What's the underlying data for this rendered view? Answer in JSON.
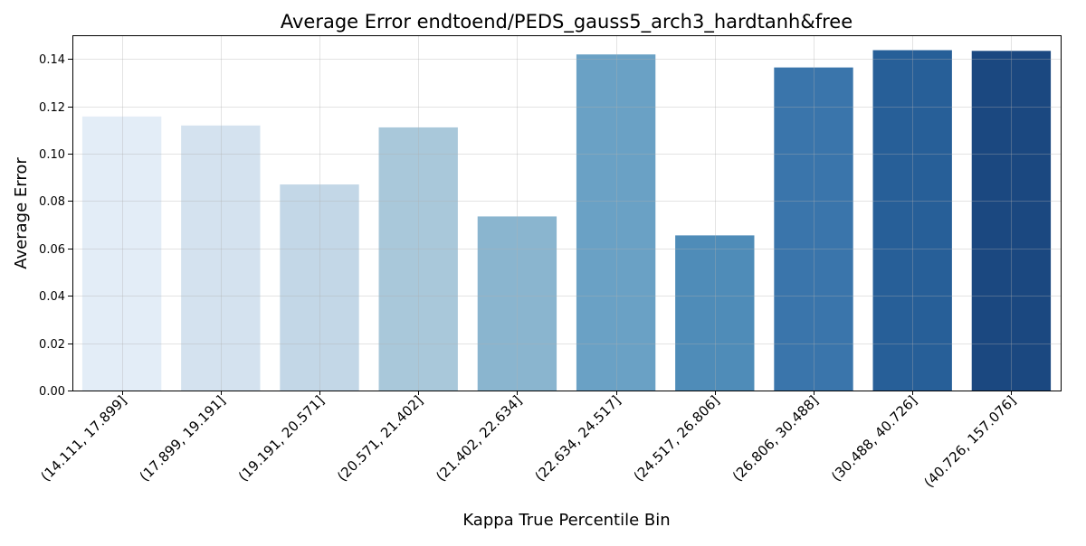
{
  "chart_data": {
    "type": "bar",
    "title": "Average Error endtoend/PEDS_gauss5_arch3_hardtanh&free",
    "xlabel": "Kappa True Percentile Bin",
    "ylabel": "Average Error",
    "categories": [
      "(14.111, 17.899]",
      "(17.899, 19.191]",
      "(19.191, 20.571]",
      "(20.571, 21.402]",
      "(21.402, 22.634]",
      "(22.634, 24.517]",
      "(24.517, 26.806]",
      "(26.806, 30.488]",
      "(30.488, 40.726]",
      "(40.726, 157.076]"
    ],
    "values": [
      0.1157,
      0.1119,
      0.087,
      0.1111,
      0.0735,
      0.1419,
      0.0655,
      0.1364,
      0.1437,
      0.1434
    ],
    "colors": [
      "#e3edf7",
      "#d4e2ef",
      "#c3d7e7",
      "#a9c8da",
      "#8ab5cf",
      "#6aa1c5",
      "#4f8cb8",
      "#3a75ab",
      "#275f98",
      "#1b4880"
    ],
    "ylim": [
      0,
      0.15
    ],
    "yticks": [
      "0.00",
      "0.02",
      "0.04",
      "0.06",
      "0.08",
      "0.10",
      "0.12",
      "0.14"
    ],
    "grid": true,
    "legend": "none"
  }
}
